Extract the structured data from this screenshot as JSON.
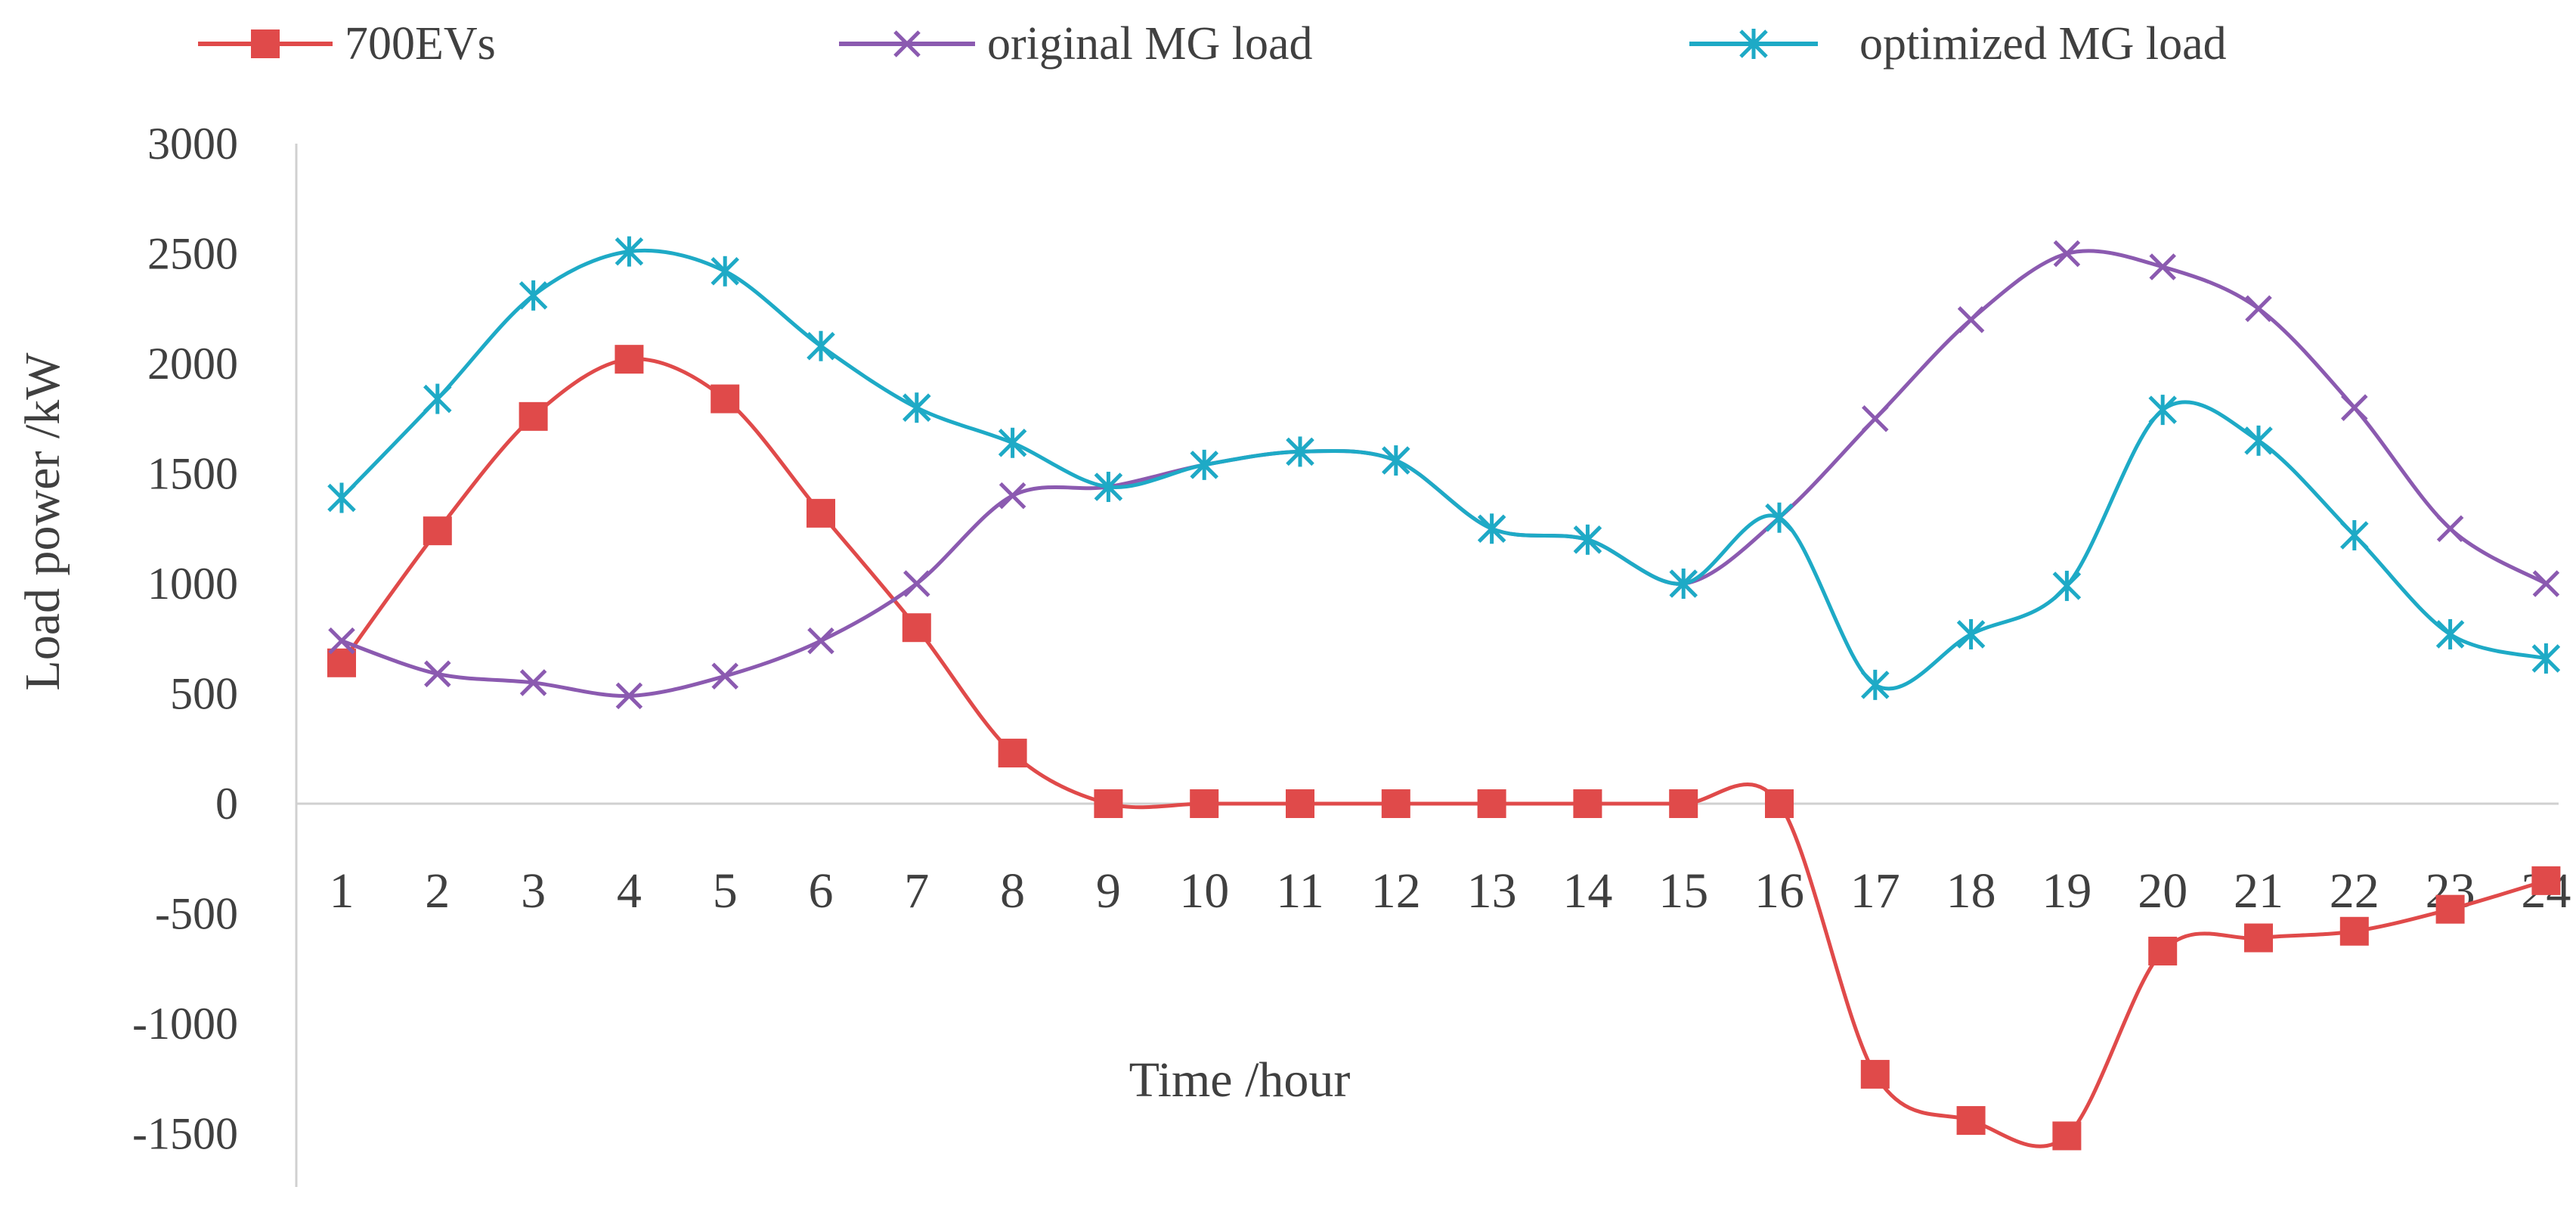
{
  "chart_data": {
    "type": "line",
    "title": "",
    "xlabel": "Time /hour",
    "ylabel": "Load power /kW",
    "categories": [
      "1",
      "2",
      "3",
      "4",
      "5",
      "6",
      "7",
      "8",
      "9",
      "10",
      "11",
      "12",
      "13",
      "14",
      "15",
      "16",
      "17",
      "18",
      "19",
      "20",
      "21",
      "22",
      "23",
      "24"
    ],
    "yticks": [
      "3000",
      "2500",
      "2000",
      "1500",
      "1000",
      "500",
      "0",
      "-500",
      "-1000",
      "-1500"
    ],
    "ylim": [
      -1750,
      3000
    ],
    "grid": false,
    "legend_position": "top",
    "series": [
      {
        "name": "700EVs",
        "color": "#e04a4a",
        "marker": "square",
        "values": [
          640,
          1240,
          1760,
          2020,
          1840,
          1320,
          800,
          230,
          0,
          0,
          0,
          0,
          0,
          0,
          0,
          0,
          -1230,
          -1440,
          -1510,
          -670,
          -610,
          -580,
          -480,
          -350
        ]
      },
      {
        "name": "original MG load",
        "color": "#8b5ab0",
        "marker": "x",
        "values": [
          740,
          590,
          550,
          490,
          580,
          740,
          1000,
          1400,
          1440,
          1540,
          1600,
          1560,
          1250,
          1200,
          1000,
          1300,
          1750,
          2200,
          2500,
          2440,
          2250,
          1800,
          1250,
          1000
        ]
      },
      {
        "name": "optimized MG load",
        "color": "#1eaac6",
        "marker": "asterisk",
        "values": [
          1390,
          1840,
          2310,
          2510,
          2420,
          2080,
          1800,
          1640,
          1440,
          1540,
          1600,
          1560,
          1250,
          1200,
          1000,
          1300,
          540,
          770,
          990,
          1790,
          1650,
          1220,
          770,
          660
        ]
      }
    ]
  }
}
